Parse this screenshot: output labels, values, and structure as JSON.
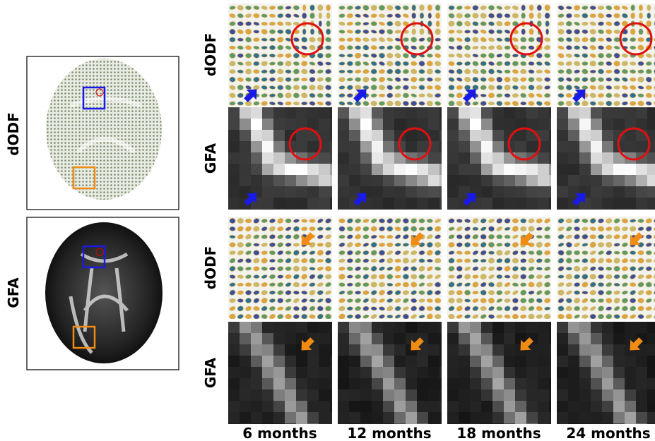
{
  "left": {
    "labels": [
      "dODF",
      "GFA"
    ]
  },
  "rows": {
    "labels": [
      "dODF",
      "GFA",
      "dODF",
      "GFA"
    ]
  },
  "columns": {
    "labels": [
      "6 months",
      "12 months",
      "18 months",
      "24 months"
    ]
  }
}
